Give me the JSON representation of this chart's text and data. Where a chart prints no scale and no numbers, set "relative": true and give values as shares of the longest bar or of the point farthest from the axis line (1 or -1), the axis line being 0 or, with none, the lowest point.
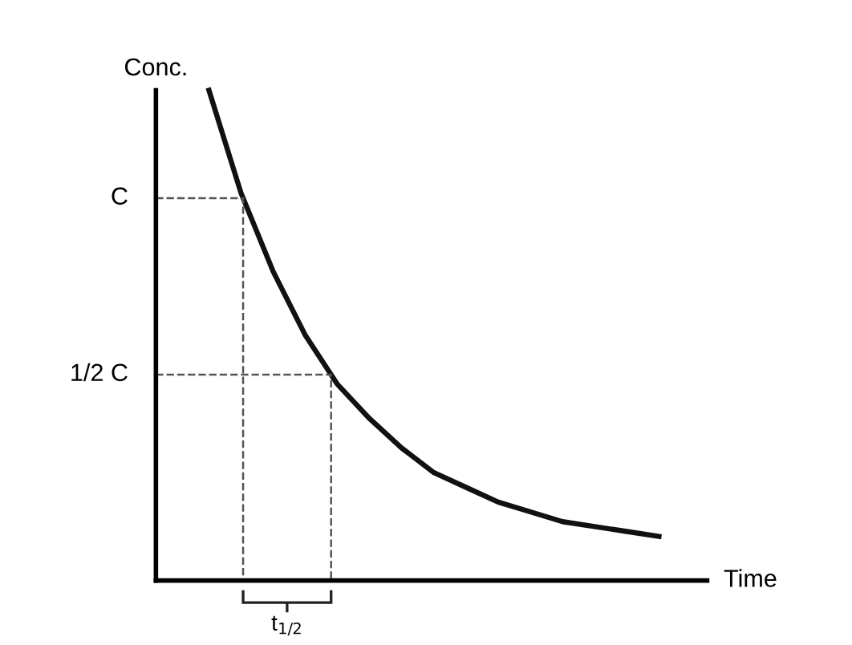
{
  "chart_data": {
    "type": "line",
    "relative": true,
    "ylabel": "Conc.",
    "xlabel": "Time",
    "line_style": "solid",
    "categories": [
      null,
      null,
      null,
      null,
      null,
      null,
      null,
      null,
      null,
      null,
      null,
      null,
      null,
      null,
      null
    ],
    "series": [
      {
        "color": "#111111",
        "values": [
          1.0,
          0.79,
          0.63,
          0.5,
          0.4,
          0.33,
          0.27,
          0.22,
          0.19,
          0.16,
          0.14,
          0.12,
          0.11,
          0.1,
          0.09
        ]
      }
    ],
    "ref_lines": [
      {
        "axis": "y",
        "value": 0.78,
        "label": "C",
        "line_style": "dashed"
      },
      {
        "axis": "y",
        "value": 0.42,
        "label": "1/2 C",
        "line_style": "dashed"
      }
    ],
    "annotations": [
      "t$_{1/2}$"
    ]
  }
}
